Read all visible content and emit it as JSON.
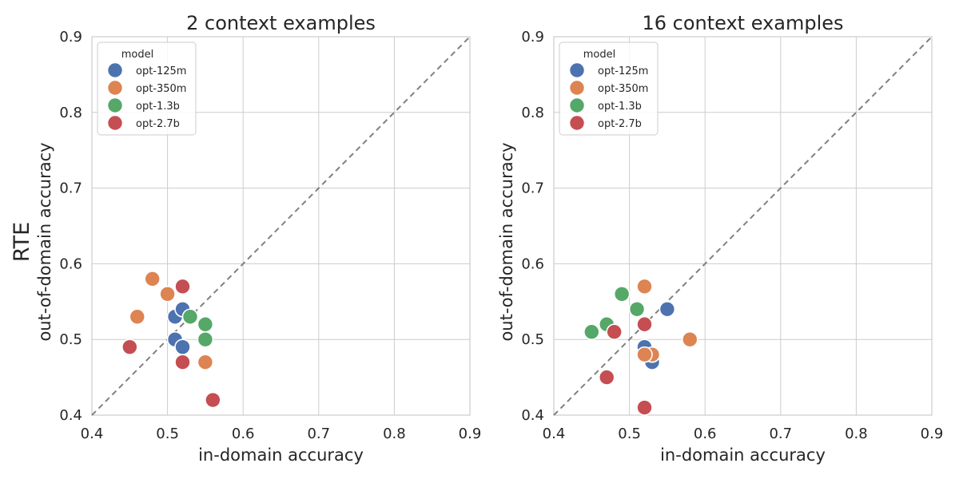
{
  "row_label": "RTE",
  "palette": {
    "opt-125m": "#4c72b0",
    "opt-350m": "#dd8452",
    "opt-1.3b": "#55a868",
    "opt-2.7b": "#c44e52"
  },
  "chart_data": [
    {
      "type": "scatter",
      "title": "2 context examples",
      "xlabel": "in-domain accuracy",
      "ylabel": "out-of-domain accuracy",
      "xlim": [
        0.4,
        0.9
      ],
      "ylim": [
        0.4,
        0.9
      ],
      "xticks": [
        "0.4",
        "0.5",
        "0.6",
        "0.7",
        "0.8",
        "0.9"
      ],
      "yticks": [
        "0.4",
        "0.5",
        "0.6",
        "0.7",
        "0.8",
        "0.9"
      ],
      "grid": true,
      "reference_line": "y = x (dashed)",
      "legend": {
        "title": "model",
        "placement": "top-left",
        "entries": [
          "opt-125m",
          "opt-350m",
          "opt-1.3b",
          "opt-2.7b"
        ]
      },
      "series": [
        {
          "name": "opt-125m",
          "points": [
            [
              0.51,
              0.53
            ],
            [
              0.52,
              0.54
            ],
            [
              0.51,
              0.5
            ],
            [
              0.52,
              0.49
            ]
          ]
        },
        {
          "name": "opt-350m",
          "points": [
            [
              0.48,
              0.58
            ],
            [
              0.5,
              0.56
            ],
            [
              0.46,
              0.53
            ],
            [
              0.55,
              0.47
            ]
          ]
        },
        {
          "name": "opt-1.3b",
          "points": [
            [
              0.53,
              0.53
            ],
            [
              0.55,
              0.52
            ],
            [
              0.55,
              0.5
            ]
          ]
        },
        {
          "name": "opt-2.7b",
          "points": [
            [
              0.52,
              0.57
            ],
            [
              0.45,
              0.49
            ],
            [
              0.52,
              0.47
            ],
            [
              0.56,
              0.42
            ]
          ]
        }
      ]
    },
    {
      "type": "scatter",
      "title": "16 context examples",
      "xlabel": "in-domain accuracy",
      "ylabel": "out-of-domain accuracy",
      "xlim": [
        0.4,
        0.9
      ],
      "ylim": [
        0.4,
        0.9
      ],
      "xticks": [
        "0.4",
        "0.5",
        "0.6",
        "0.7",
        "0.8",
        "0.9"
      ],
      "yticks": [
        "0.4",
        "0.5",
        "0.6",
        "0.7",
        "0.8",
        "0.9"
      ],
      "grid": true,
      "reference_line": "y = x (dashed)",
      "legend": {
        "title": "model",
        "placement": "top-left",
        "entries": [
          "opt-125m",
          "opt-350m",
          "opt-1.3b",
          "opt-2.7b"
        ]
      },
      "series": [
        {
          "name": "opt-125m",
          "points": [
            [
              0.55,
              0.54
            ],
            [
              0.52,
              0.49
            ],
            [
              0.53,
              0.47
            ]
          ]
        },
        {
          "name": "opt-350m",
          "points": [
            [
              0.52,
              0.57
            ],
            [
              0.58,
              0.5
            ],
            [
              0.53,
              0.48
            ],
            [
              0.52,
              0.48
            ]
          ]
        },
        {
          "name": "opt-1.3b",
          "points": [
            [
              0.49,
              0.56
            ],
            [
              0.51,
              0.54
            ],
            [
              0.47,
              0.52
            ],
            [
              0.45,
              0.51
            ]
          ]
        },
        {
          "name": "opt-2.7b",
          "points": [
            [
              0.52,
              0.52
            ],
            [
              0.48,
              0.51
            ],
            [
              0.47,
              0.45
            ],
            [
              0.52,
              0.41
            ]
          ]
        }
      ]
    }
  ]
}
